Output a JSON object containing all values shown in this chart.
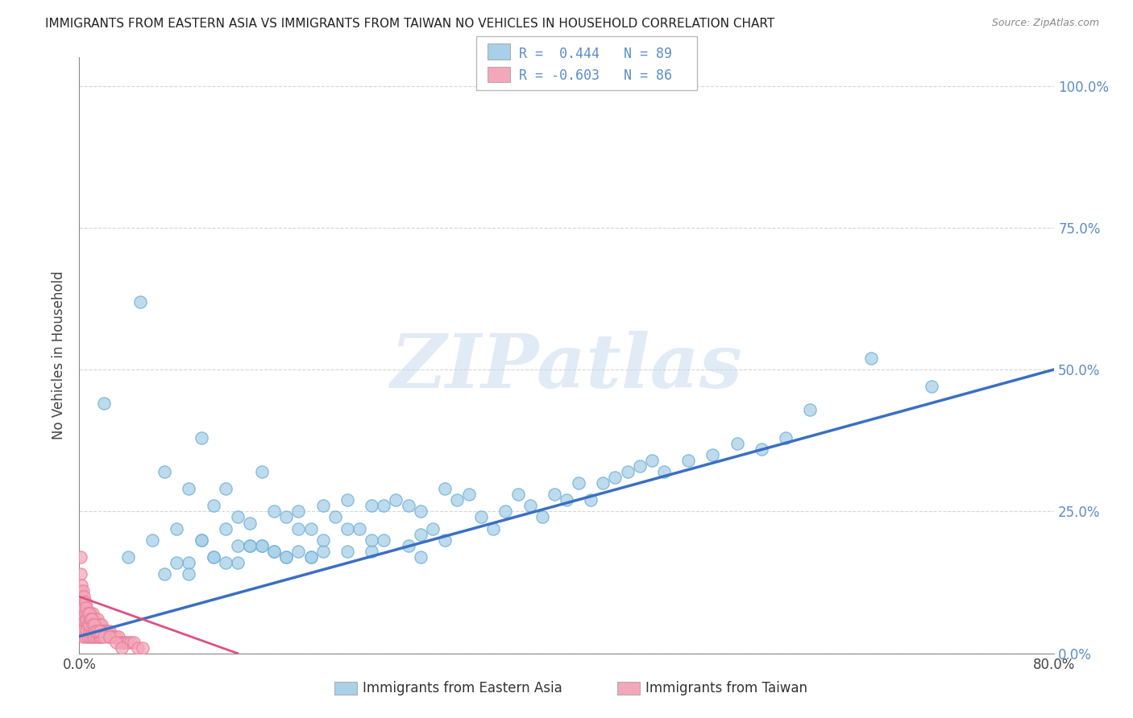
{
  "title": "IMMIGRANTS FROM EASTERN ASIA VS IMMIGRANTS FROM TAIWAN NO VEHICLES IN HOUSEHOLD CORRELATION CHART",
  "source": "Source: ZipAtlas.com",
  "ylabel_label": "No Vehicles in Household",
  "legend_labels": [
    "Immigrants from Eastern Asia",
    "Immigrants from Taiwan"
  ],
  "blue_color": "#a8d0e8",
  "blue_edge_color": "#6aaed6",
  "pink_color": "#f4a7b9",
  "pink_edge_color": "#e87d9a",
  "blue_line_color": "#3a6fc4",
  "pink_line_color": "#e05080",
  "tick_color": "#5b8cc8",
  "watermark": "ZIPatlas",
  "blue_scatter_x": [
    0.02,
    0.04,
    0.05,
    0.06,
    0.07,
    0.08,
    0.09,
    0.09,
    0.1,
    0.1,
    0.11,
    0.11,
    0.12,
    0.12,
    0.13,
    0.13,
    0.14,
    0.14,
    0.15,
    0.15,
    0.16,
    0.16,
    0.17,
    0.17,
    0.18,
    0.18,
    0.19,
    0.19,
    0.2,
    0.2,
    0.21,
    0.22,
    0.22,
    0.23,
    0.24,
    0.24,
    0.25,
    0.25,
    0.26,
    0.27,
    0.27,
    0.28,
    0.28,
    0.29,
    0.3,
    0.3,
    0.31,
    0.32,
    0.33,
    0.34,
    0.35,
    0.36,
    0.37,
    0.38,
    0.39,
    0.4,
    0.41,
    0.42,
    0.43,
    0.44,
    0.45,
    0.46,
    0.47,
    0.48,
    0.5,
    0.52,
    0.54,
    0.56,
    0.58,
    0.6,
    0.07,
    0.08,
    0.09,
    0.1,
    0.11,
    0.12,
    0.13,
    0.14,
    0.15,
    0.16,
    0.17,
    0.18,
    0.19,
    0.2,
    0.22,
    0.24,
    0.28,
    0.65,
    0.7
  ],
  "blue_scatter_y": [
    0.44,
    0.17,
    0.62,
    0.2,
    0.32,
    0.22,
    0.29,
    0.16,
    0.38,
    0.2,
    0.26,
    0.17,
    0.29,
    0.22,
    0.24,
    0.16,
    0.23,
    0.19,
    0.32,
    0.19,
    0.25,
    0.18,
    0.24,
    0.17,
    0.25,
    0.18,
    0.22,
    0.17,
    0.26,
    0.18,
    0.24,
    0.27,
    0.18,
    0.22,
    0.26,
    0.18,
    0.26,
    0.2,
    0.27,
    0.26,
    0.19,
    0.25,
    0.17,
    0.22,
    0.29,
    0.2,
    0.27,
    0.28,
    0.24,
    0.22,
    0.25,
    0.28,
    0.26,
    0.24,
    0.28,
    0.27,
    0.3,
    0.27,
    0.3,
    0.31,
    0.32,
    0.33,
    0.34,
    0.32,
    0.34,
    0.35,
    0.37,
    0.36,
    0.38,
    0.43,
    0.14,
    0.16,
    0.14,
    0.2,
    0.17,
    0.16,
    0.19,
    0.19,
    0.19,
    0.18,
    0.17,
    0.22,
    0.17,
    0.2,
    0.22,
    0.2,
    0.21,
    0.52,
    0.47
  ],
  "pink_scatter_x": [
    0.001,
    0.002,
    0.002,
    0.003,
    0.003,
    0.004,
    0.004,
    0.005,
    0.005,
    0.006,
    0.006,
    0.007,
    0.007,
    0.008,
    0.008,
    0.009,
    0.009,
    0.01,
    0.01,
    0.011,
    0.011,
    0.012,
    0.012,
    0.013,
    0.013,
    0.014,
    0.014,
    0.015,
    0.015,
    0.016,
    0.016,
    0.017,
    0.017,
    0.018,
    0.018,
    0.019,
    0.02,
    0.021,
    0.022,
    0.023,
    0.024,
    0.025,
    0.026,
    0.027,
    0.028,
    0.03,
    0.032,
    0.034,
    0.036,
    0.038,
    0.04,
    0.042,
    0.045,
    0.048,
    0.052,
    0.001,
    0.001,
    0.001,
    0.001,
    0.002,
    0.002,
    0.002,
    0.003,
    0.003,
    0.003,
    0.004,
    0.004,
    0.005,
    0.005,
    0.006,
    0.006,
    0.007,
    0.007,
    0.008,
    0.008,
    0.009,
    0.01,
    0.011,
    0.012,
    0.013,
    0.015,
    0.017,
    0.02,
    0.025,
    0.03,
    0.035
  ],
  "pink_scatter_y": [
    0.05,
    0.04,
    0.08,
    0.06,
    0.03,
    0.07,
    0.04,
    0.06,
    0.03,
    0.08,
    0.04,
    0.07,
    0.03,
    0.06,
    0.04,
    0.07,
    0.03,
    0.06,
    0.04,
    0.07,
    0.03,
    0.05,
    0.03,
    0.06,
    0.04,
    0.05,
    0.03,
    0.06,
    0.04,
    0.05,
    0.03,
    0.05,
    0.03,
    0.05,
    0.03,
    0.04,
    0.04,
    0.04,
    0.04,
    0.04,
    0.03,
    0.04,
    0.03,
    0.03,
    0.03,
    0.03,
    0.03,
    0.02,
    0.02,
    0.02,
    0.02,
    0.02,
    0.02,
    0.01,
    0.01,
    0.14,
    0.11,
    0.09,
    0.17,
    0.12,
    0.1,
    0.08,
    0.11,
    0.09,
    0.07,
    0.1,
    0.08,
    0.09,
    0.07,
    0.08,
    0.06,
    0.07,
    0.05,
    0.07,
    0.05,
    0.06,
    0.06,
    0.05,
    0.05,
    0.04,
    0.04,
    0.04,
    0.03,
    0.03,
    0.02,
    0.01
  ],
  "xlim": [
    0.0,
    0.8
  ],
  "ylim": [
    0.0,
    1.05
  ],
  "yticks": [
    0.0,
    0.25,
    0.5,
    0.75,
    1.0
  ],
  "ytick_labels": [
    "0.0%",
    "25.0%",
    "50.0%",
    "75.0%",
    "100.0%"
  ],
  "xticks": [
    0.0,
    0.8
  ],
  "xtick_labels": [
    "0.0%",
    "80.0%"
  ],
  "blue_line_x": [
    0.0,
    0.8
  ],
  "blue_line_y": [
    0.03,
    0.5
  ],
  "pink_line_x": [
    0.0,
    0.13
  ],
  "pink_line_y": [
    0.1,
    0.0
  ]
}
